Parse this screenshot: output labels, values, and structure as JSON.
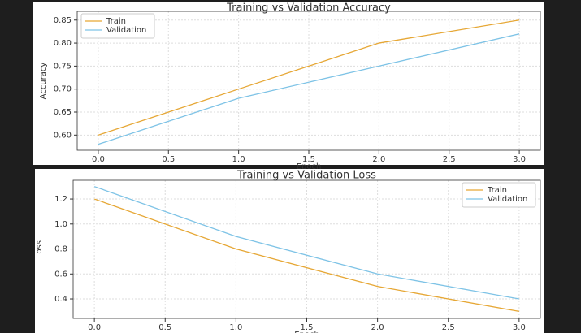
{
  "chart_data": [
    {
      "type": "line",
      "title": "Training vs Validation Accuracy",
      "xlabel": "Epoch",
      "ylabel": "Accuracy",
      "x": [
        0,
        1,
        2,
        3
      ],
      "series": [
        {
          "name": "Train",
          "color": "#e6a735",
          "values": [
            0.6,
            0.7,
            0.8,
            0.85
          ]
        },
        {
          "name": "Validation",
          "color": "#7ec3e6",
          "values": [
            0.58,
            0.68,
            0.75,
            0.82
          ]
        }
      ],
      "xlim": [
        -0.15,
        3.15
      ],
      "xticks": [
        {
          "value": 0,
          "label": "0.0"
        },
        0.5,
        {
          "value": 1,
          "label": "1.0"
        },
        1.5,
        {
          "value": 2,
          "label": "2.0"
        },
        2.5,
        {
          "value": 3,
          "label": "3.0"
        }
      ],
      "ylim": [
        0.567,
        0.869
      ],
      "yticks": [
        {
          "value": 0.6,
          "label": "0.60"
        },
        0.65,
        {
          "value": 0.7,
          "label": "0.70"
        },
        0.75,
        {
          "value": 0.8,
          "label": "0.80"
        },
        0.85
      ],
      "grid": true,
      "legend": "upper left"
    },
    {
      "type": "line",
      "title": "Training vs Validation Loss",
      "xlabel": "Epoch",
      "ylabel": "Loss",
      "x": [
        0,
        1,
        2,
        3
      ],
      "series": [
        {
          "name": "Train",
          "color": "#e6a735",
          "values": [
            1.2,
            0.8,
            0.5,
            0.3
          ]
        },
        {
          "name": "Validation",
          "color": "#7ec3e6",
          "values": [
            1.3,
            0.9,
            0.6,
            0.4
          ]
        }
      ],
      "xlim": [
        -0.15,
        3.15
      ],
      "xticks": [
        {
          "value": 0,
          "label": "0.0"
        },
        0.5,
        {
          "value": 1,
          "label": "1.0"
        },
        1.5,
        {
          "value": 2,
          "label": "2.0"
        },
        2.5,
        {
          "value": 3,
          "label": "3.0"
        }
      ],
      "ylim": [
        0.244,
        1.35
      ],
      "yticks": [
        0.4,
        0.6,
        0.8,
        {
          "value": 1,
          "label": "1.0"
        },
        1.2
      ],
      "grid": true,
      "legend": "upper right"
    }
  ]
}
